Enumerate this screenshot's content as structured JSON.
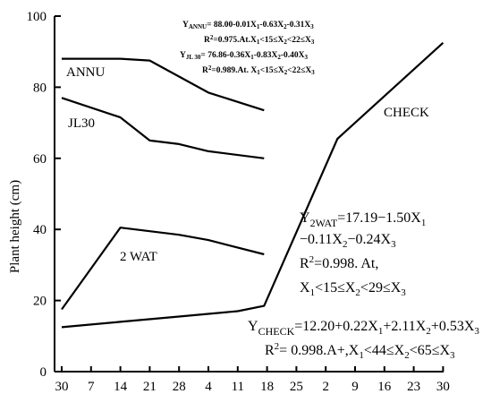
{
  "chart_data": {
    "type": "line",
    "title": "",
    "xlabel": "",
    "ylabel": "Plant height (cm)",
    "ylim": [
      0,
      100
    ],
    "yticks": [
      0,
      20,
      40,
      60,
      80,
      100
    ],
    "xtick_labels": [
      "30",
      "7",
      "14",
      "21",
      "28",
      "4",
      "11",
      "18",
      "25",
      "2",
      "9",
      "16",
      "23",
      "30"
    ],
    "grid": false,
    "series": [
      {
        "name": "ANNU",
        "x": [
          0,
          2,
          3,
          4,
          5,
          6.9
        ],
        "y": [
          88,
          88,
          87.5,
          83,
          78.5,
          73.5
        ]
      },
      {
        "name": "JL30",
        "x": [
          0,
          2,
          3,
          4,
          5,
          6.9
        ],
        "y": [
          77,
          71.5,
          65,
          64,
          62,
          60
        ]
      },
      {
        "name": "2 WAT",
        "x": [
          0,
          2,
          3,
          4,
          5,
          6.9
        ],
        "y": [
          17.5,
          40.5,
          39.5,
          38.5,
          37,
          33
        ]
      },
      {
        "name": "CHECK",
        "x": [
          0,
          2,
          4,
          6,
          6.9,
          9.4,
          13
        ],
        "y": [
          12.5,
          14,
          15.5,
          17,
          18.5,
          65.5,
          92.5
        ]
      }
    ],
    "annotations": {
      "annu_eq": "Y",
      "annu_eq_sub": "ANNU",
      "annu_eq_rest": "= 88.00-0.01X",
      "annu_eq_tail": "-0.63X",
      "annu_eq_tail2": "-0.31X",
      "annu_r2": "R",
      "annu_r2_rest": "=0.975.At.X",
      "annu_r2_cond": "<15",
      "annu_r2_cond2": "X",
      "annu_r2_cond3": "<22",
      "annu_r2_cond4": "X",
      "jl30_eq": "Y",
      "jl30_eq_sub": "JL 30",
      "jl30_eq_rest": "= 76.86-0.36X",
      "jl30_eq_tail": "-0.83X",
      "jl30_eq_tail2": "-0.40X",
      "jl30_r2": "R",
      "jl30_r2_rest": "=0.989.At. X",
      "jl30_r2_cond": "<15",
      "jl30_r2_cond2": "X",
      "jl30_r2_cond3": "<22",
      "jl30_r2_cond4": "X",
      "wat_line1": "Y",
      "wat_line1_sub": "2WAT",
      "wat_line1_rest": "=17.19−1.50X",
      "wat_line2": "−0.11X",
      "wat_line2_rest": "−0.24X",
      "wat_line3": "R",
      "wat_line3_rest": "=0.998.   At,",
      "wat_line4": "X",
      "wat_line4_rest": "<15≤X",
      "wat_line4_rest2": "<29≤X",
      "check_line1": "Y",
      "check_line1_sub": "CHECK",
      "check_line1_rest": "=12.20+0.22X",
      "check_line1_rest2": "+2.11X",
      "check_line1_rest3": "+0.53X",
      "check_line2": "R",
      "check_line2_rest": "= 0.998.A+,X",
      "check_line2_rest2": "<44≤X",
      "check_line2_rest3": "<65≤X",
      "sub1": "1",
      "sub2": "2",
      "sub3": "3",
      "sup2": "2",
      "leq": "≤"
    }
  }
}
